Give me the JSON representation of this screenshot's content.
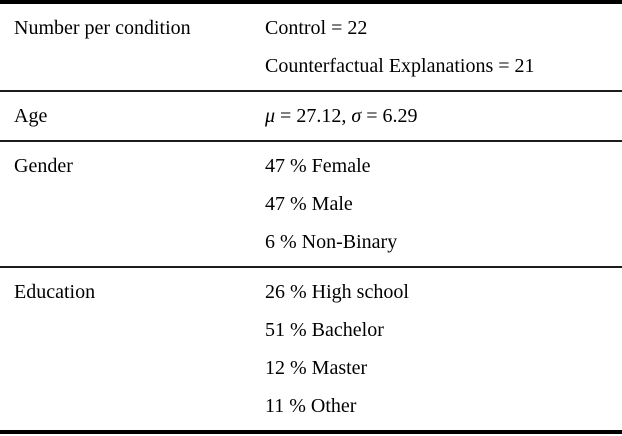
{
  "table": {
    "name": "participant-demographics-table",
    "colors": {
      "background": "#ffffff",
      "text": "#000000",
      "thick_rule": "#000000",
      "thin_rule": "#1c1c1c"
    },
    "rows": [
      {
        "label": "Number per condition",
        "values": [
          "Control = 22",
          "Counterfactual Explanations = 21"
        ]
      },
      {
        "label": "Age",
        "values": [
          "μ = 27.12, σ = 6.29"
        ]
      },
      {
        "label": "Gender",
        "values": [
          "47 % Female",
          "47 % Male",
          "6 % Non-Binary"
        ]
      },
      {
        "label": "Education",
        "values": [
          "26 % High school",
          "51 % Bachelor",
          "12 % Master",
          "11 % Other"
        ]
      }
    ]
  }
}
